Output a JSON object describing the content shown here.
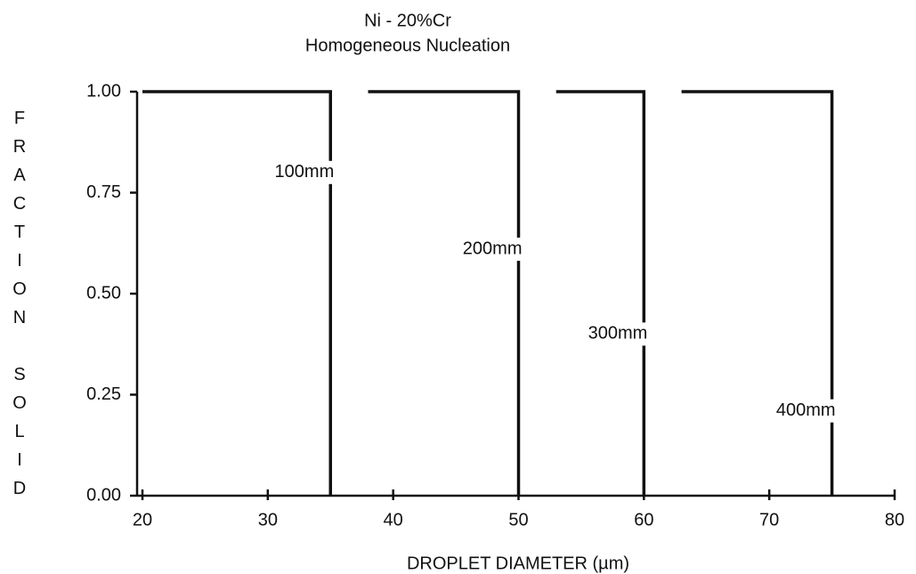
{
  "chart_data": {
    "type": "line",
    "title": "Ni - 20%Cr",
    "subtitle": "Homogeneous Nucleation",
    "x_label": "DROPLET DIAMETER (µm)",
    "y_label": "FRACTION SOLID",
    "xlim": [
      20,
      80
    ],
    "xticks": [
      20,
      30,
      40,
      50,
      60,
      70,
      80
    ],
    "ylim": [
      0,
      1
    ],
    "yticks": [
      {
        "value": 0,
        "label": "0.00"
      },
      {
        "value": 0.25,
        "label": "0.25"
      },
      {
        "value": 0.5,
        "label": "0.50"
      },
      {
        "value": 0.75,
        "label": "0.75"
      },
      {
        "value": 1,
        "label": "1.00"
      }
    ],
    "grid": false,
    "series": [
      {
        "name": "100mm",
        "color": "#111111",
        "x": [
          20,
          35,
          35
        ],
        "values": [
          1,
          1,
          0
        ]
      },
      {
        "name": "200mm",
        "color": "#111111",
        "x": [
          38,
          50,
          50
        ],
        "values": [
          1,
          1,
          0
        ]
      },
      {
        "name": "300mm",
        "color": "#111111",
        "x": [
          53,
          60,
          60
        ],
        "values": [
          1,
          1,
          0
        ]
      },
      {
        "name": "400mm",
        "color": "#111111",
        "x": [
          63,
          75,
          75
        ],
        "values": [
          1,
          1,
          0
        ]
      }
    ]
  }
}
